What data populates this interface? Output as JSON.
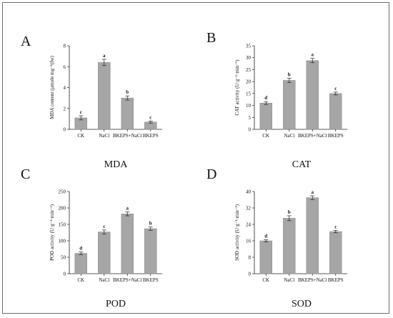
{
  "panels": [
    {
      "letter": "A",
      "caption": "MDA",
      "chart_data": {
        "type": "bar",
        "categories": [
          "CK",
          "NaCl",
          "BKEPS+NaCl",
          "BKEPS"
        ],
        "values": [
          1.1,
          6.4,
          3.0,
          0.7
        ],
        "errors": [
          0.2,
          0.3,
          0.2,
          0.1
        ],
        "letters": [
          "c",
          "a",
          "b",
          "c"
        ],
        "ylabel": "MDA content (μmole mg⁻¹(fw)",
        "ylim": [
          0,
          8
        ],
        "yticks": [
          "0",
          "2",
          "4",
          "6",
          "8"
        ]
      }
    },
    {
      "letter": "B",
      "caption": "CAT",
      "chart_data": {
        "type": "bar",
        "categories": [
          "CK",
          "NaCl",
          "BKEPS+NaCl",
          "BKEPS"
        ],
        "values": [
          11,
          20.5,
          28.8,
          15
        ],
        "errors": [
          0.6,
          0.9,
          0.9,
          0.6
        ],
        "letters": [
          "d",
          "b",
          "a",
          "c"
        ],
        "ylabel": "CAT activity (U·g⁻¹·min⁻¹)",
        "ylim": [
          0,
          35
        ],
        "yticks": [
          "0",
          "5",
          "10",
          "15",
          "20",
          "25",
          "30",
          "35"
        ]
      }
    },
    {
      "letter": "C",
      "caption": "POD",
      "chart_data": {
        "type": "bar",
        "categories": [
          "CK",
          "NaCl",
          "BKEPS+NaCl",
          "BKEPS"
        ],
        "values": [
          62,
          127,
          182,
          137
        ],
        "errors": [
          4,
          6,
          6,
          5
        ],
        "letters": [
          "d",
          "c",
          "a",
          "b"
        ],
        "ylabel": "POD activity (U·g⁻¹·min⁻¹)",
        "ylim": [
          0,
          250
        ],
        "yticks": [
          "0",
          "50",
          "100",
          "150",
          "200",
          "250"
        ]
      }
    },
    {
      "letter": "D",
      "caption": "SOD",
      "chart_data": {
        "type": "bar",
        "categories": [
          "CK",
          "NaCl",
          "BKEPS+NaCl",
          "BKEPS"
        ],
        "values": [
          16,
          27,
          37,
          20.5
        ],
        "errors": [
          0.5,
          1.2,
          0.9,
          0.6
        ],
        "letters": [
          "d",
          "b",
          "a",
          "c"
        ],
        "ylabel": "SOD activity (U·g⁻¹·min⁻¹)",
        "ylim": [
          0,
          40
        ],
        "yticks": [
          "0",
          "8",
          "16",
          "24",
          "32",
          "40"
        ]
      }
    }
  ],
  "colors": {
    "bar": "#a6a6a6",
    "axis": "#222222",
    "frame": "#6d6d6d"
  }
}
